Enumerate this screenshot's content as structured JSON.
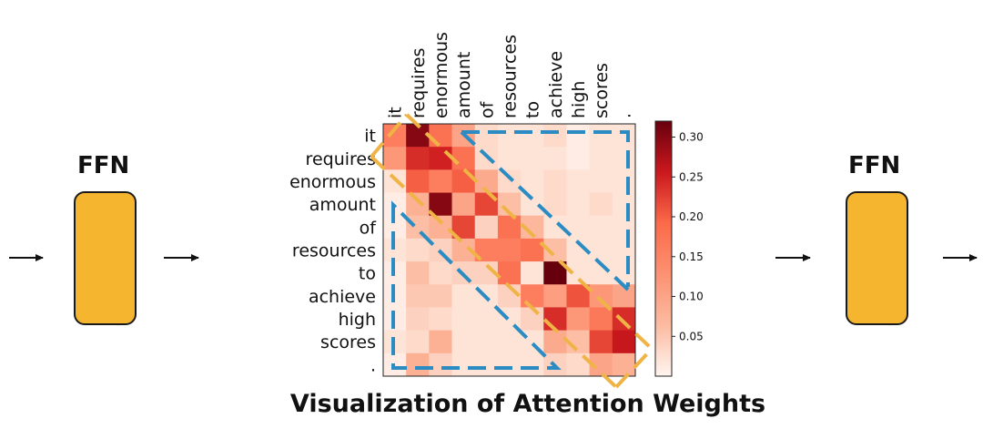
{
  "left_block": {
    "label": "FFN"
  },
  "right_block": {
    "label": "FFN"
  },
  "caption": "Visualization of Attention Weights",
  "colorbar": {
    "ticks": [
      "0.30",
      "0.25",
      "0.20",
      "0.15",
      "0.10",
      "0.05"
    ]
  },
  "colors": {
    "ffn_fill": "#f6b52e",
    "blue_dash": "#2b8cc4",
    "orange_dash": "#f0b446"
  },
  "chart_data": {
    "type": "heatmap",
    "title": "Visualization of Attention Weights",
    "tokens": [
      "it",
      "requires",
      "enormous",
      "amount",
      "of",
      "resources",
      "to",
      "achieve",
      "high",
      "scores",
      "."
    ],
    "zlim": [
      0,
      0.32
    ],
    "matrix": [
      [
        0.16,
        0.3,
        0.18,
        0.1,
        0.03,
        0.02,
        0.02,
        0.03,
        0.01,
        0.02,
        0.02
      ],
      [
        0.12,
        0.24,
        0.25,
        0.18,
        0.03,
        0.02,
        0.02,
        0.02,
        0.01,
        0.02,
        0.02
      ],
      [
        0.02,
        0.2,
        0.16,
        0.2,
        0.09,
        0.03,
        0.02,
        0.03,
        0.02,
        0.02,
        0.02
      ],
      [
        0.01,
        0.08,
        0.3,
        0.1,
        0.22,
        0.06,
        0.02,
        0.03,
        0.02,
        0.03,
        0.02
      ],
      [
        0.01,
        0.06,
        0.08,
        0.22,
        0.04,
        0.18,
        0.07,
        0.02,
        0.02,
        0.02,
        0.02
      ],
      [
        0.02,
        0.03,
        0.04,
        0.08,
        0.16,
        0.16,
        0.18,
        0.06,
        0.02,
        0.02,
        0.02
      ],
      [
        0.01,
        0.06,
        0.03,
        0.04,
        0.04,
        0.18,
        0.02,
        0.32,
        0.02,
        0.02,
        0.02
      ],
      [
        0.01,
        0.05,
        0.05,
        0.02,
        0.02,
        0.04,
        0.16,
        0.11,
        0.21,
        0.12,
        0.1
      ],
      [
        0.01,
        0.04,
        0.03,
        0.02,
        0.02,
        0.02,
        0.04,
        0.24,
        0.12,
        0.17,
        0.24
      ],
      [
        0.02,
        0.03,
        0.08,
        0.02,
        0.02,
        0.02,
        0.02,
        0.09,
        0.06,
        0.22,
        0.26
      ],
      [
        0.01,
        0.08,
        0.04,
        0.02,
        0.02,
        0.02,
        0.02,
        0.04,
        0.03,
        0.1,
        0.08
      ]
    ]
  }
}
